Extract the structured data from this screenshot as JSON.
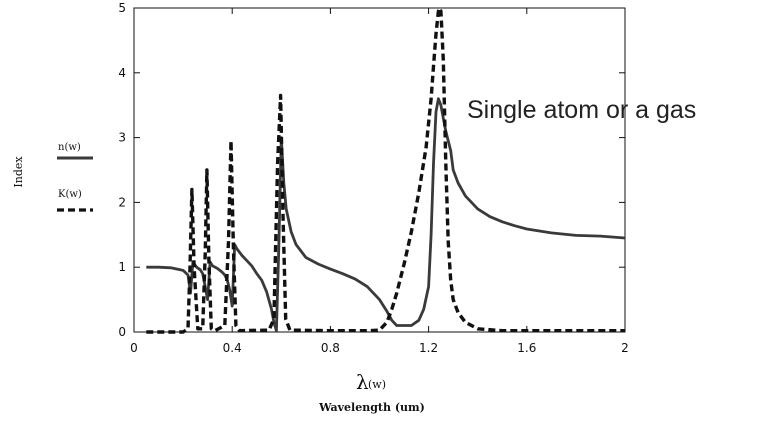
{
  "chart_data": {
    "type": "line",
    "title": "",
    "xlabel": "Wavelength (um)",
    "x_symbol": "λ",
    "x_symbol_arg": "(w)",
    "ylabel": "Index",
    "xlim": [
      0,
      2
    ],
    "ylim": [
      0,
      5
    ],
    "x_ticks": [
      "0",
      "0.4",
      "0.8",
      "1.2",
      "1.6",
      "2"
    ],
    "x_tick_values": [
      0,
      0.4,
      0.8,
      1.2,
      1.6,
      2
    ],
    "y_ticks": [
      "0",
      "1",
      "2",
      "3",
      "4",
      "5"
    ],
    "y_tick_values": [
      0,
      1,
      2,
      3,
      4,
      5
    ],
    "grid": false,
    "legend_position": "left",
    "annotation": "Single atom or a gas",
    "series": [
      {
        "name": "n(w)",
        "style": "solid",
        "color": "#3a3a3a",
        "x": [
          0.05,
          0.1,
          0.15,
          0.2,
          0.22,
          0.23,
          0.24,
          0.255,
          0.27,
          0.28,
          0.29,
          0.3,
          0.31,
          0.32,
          0.34,
          0.36,
          0.37,
          0.38,
          0.39,
          0.4,
          0.41,
          0.42,
          0.44,
          0.46,
          0.48,
          0.5,
          0.52,
          0.54,
          0.56,
          0.57,
          0.58,
          0.59,
          0.6,
          0.61,
          0.62,
          0.64,
          0.66,
          0.7,
          0.75,
          0.8,
          0.85,
          0.9,
          0.95,
          1.0,
          1.03,
          1.05,
          1.07,
          1.1,
          1.13,
          1.16,
          1.18,
          1.2,
          1.21,
          1.22,
          1.23,
          1.24,
          1.25,
          1.26,
          1.27,
          1.29,
          1.3,
          1.32,
          1.35,
          1.4,
          1.45,
          1.5,
          1.55,
          1.6,
          1.7,
          1.8,
          1.9,
          2.0
        ],
        "y": [
          1.0,
          1.0,
          0.99,
          0.95,
          0.88,
          0.6,
          1.08,
          1.0,
          0.96,
          0.9,
          0.7,
          0.5,
          1.08,
          1.02,
          0.98,
          0.92,
          0.88,
          0.8,
          0.65,
          0.4,
          1.35,
          1.28,
          1.18,
          1.1,
          1.02,
          0.9,
          0.8,
          0.62,
          0.35,
          0.15,
          0.02,
          1.3,
          3.0,
          2.3,
          1.9,
          1.55,
          1.35,
          1.15,
          1.05,
          0.97,
          0.9,
          0.82,
          0.7,
          0.5,
          0.32,
          0.18,
          0.1,
          0.1,
          0.1,
          0.18,
          0.35,
          0.7,
          1.5,
          2.6,
          3.4,
          3.6,
          3.5,
          3.3,
          3.1,
          2.8,
          2.5,
          2.3,
          2.1,
          1.9,
          1.78,
          1.7,
          1.64,
          1.59,
          1.53,
          1.49,
          1.48,
          1.45
        ]
      },
      {
        "name": "K(w)",
        "style": "dashed",
        "color": "#111111",
        "x": [
          0.05,
          0.2,
          0.22,
          0.228,
          0.236,
          0.245,
          0.26,
          0.28,
          0.29,
          0.297,
          0.305,
          0.315,
          0.33,
          0.37,
          0.385,
          0.395,
          0.405,
          0.415,
          0.43,
          0.55,
          0.57,
          0.585,
          0.597,
          0.607,
          0.618,
          0.635,
          0.8,
          0.95,
          1.0,
          1.03,
          1.05,
          1.07,
          1.1,
          1.13,
          1.16,
          1.19,
          1.21,
          1.22,
          1.23,
          1.24,
          1.245,
          1.25,
          1.26,
          1.27,
          1.28,
          1.29,
          1.3,
          1.32,
          1.35,
          1.4,
          1.5,
          2.0
        ],
        "y": [
          0,
          0,
          0.05,
          1.0,
          2.2,
          1.0,
          0.05,
          0.05,
          1.2,
          2.5,
          1.1,
          0.05,
          0.02,
          0.1,
          1.4,
          2.95,
          1.3,
          0.1,
          0.02,
          0.03,
          0.2,
          2.6,
          3.65,
          1.8,
          0.2,
          0.03,
          0.02,
          0.02,
          0.03,
          0.15,
          0.35,
          0.6,
          1.05,
          1.55,
          2.15,
          2.85,
          3.6,
          4.1,
          4.6,
          4.95,
          5.0,
          4.95,
          4.2,
          2.6,
          1.4,
          0.8,
          0.5,
          0.3,
          0.15,
          0.05,
          0.02,
          0.02
        ]
      }
    ]
  }
}
